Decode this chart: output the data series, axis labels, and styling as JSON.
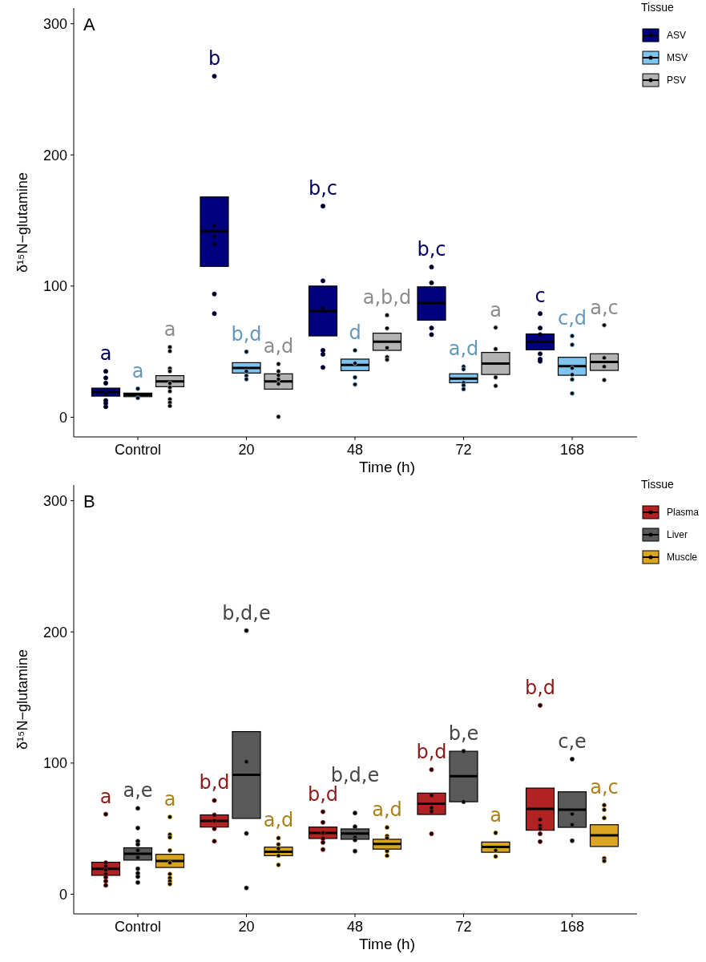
{
  "chart_data": [
    {
      "type": "box",
      "title": "A",
      "xlabel": "Time (h)",
      "ylabel": "δ¹⁵N−glutamine",
      "legend_title": "Tissue",
      "legend": "right",
      "grid": false,
      "categories": [
        "Control",
        "20",
        "48",
        "72",
        "168"
      ],
      "ylim": [
        -15,
        312
      ],
      "yticks": [
        0,
        100,
        200,
        300
      ],
      "series": [
        {
          "name": "ASV",
          "color": "#00007f",
          "boxes": [
            {
              "low": 16.1,
              "q1": 16.1,
              "median": 19.2,
              "q3": 22.2,
              "high": 22.2,
              "outliers": [
                35,
                30,
                26,
                19.4,
                18,
                12.7,
                10.6,
                8
              ]
            },
            {
              "low": 115,
              "q1": 115,
              "median": 142,
              "q3": 168,
              "high": 168,
              "outliers": [
                260,
                146,
                138,
                132,
                94,
                79
              ]
            },
            {
              "low": 62,
              "q1": 62,
              "median": 81,
              "q3": 100,
              "high": 100,
              "outliers": [
                161,
                104,
                83.5,
                51,
                48,
                38
              ]
            },
            {
              "low": 74,
              "q1": 74,
              "median": 87,
              "q3": 99.4,
              "high": 99.4,
              "outliers": [
                114.5,
                102.5,
                68,
                63
              ]
            },
            {
              "low": 51.4,
              "q1": 51.4,
              "median": 57.6,
              "q3": 63.5,
              "high": 63.5,
              "outliers": [
                79,
                68,
                63,
                48.4,
                44.3,
                42.7
              ]
            }
          ]
        },
        {
          "name": "MSV",
          "color": "#7fc3ef",
          "boxes": [
            {
              "low": 15.7,
              "q1": 15.7,
              "median": 17.1,
              "q3": 18.4,
              "high": 18.4,
              "outliers": [
                21.8,
                14.7
              ]
            },
            {
              "low": 33.7,
              "q1": 33.7,
              "median": 37.6,
              "q3": 41.6,
              "high": 41.6,
              "outliers": [
                50,
                35,
                31.7,
                29
              ]
            },
            {
              "low": 35.5,
              "q1": 35.5,
              "median": 39.8,
              "q3": 44.3,
              "high": 44.3,
              "outliers": [
                51,
                41.2,
                30.4,
                25
              ]
            },
            {
              "low": 26.3,
              "q1": 26.3,
              "median": 29.5,
              "q3": 33.1,
              "high": 33.1,
              "outliers": [
                38.6,
                36.6,
                26.3,
                24.3,
                21.4
              ]
            },
            {
              "low": 32,
              "q1": 32,
              "median": 39,
              "q3": 45.7,
              "high": 45.7,
              "outliers": [
                62,
                55.3,
                37.5,
                32.5,
                28.8,
                18.2
              ]
            }
          ]
        },
        {
          "name": "PSV",
          "color": "#b3b3b3",
          "boxes": [
            {
              "low": 23.3,
              "q1": 23.3,
              "median": 27.4,
              "q3": 31.7,
              "high": 31.7,
              "outliers": [
                53.5,
                50.4,
                37.2,
                35.1,
                25.9,
                22.8,
                19.8,
                13.7,
                11.2,
                8.6
              ]
            },
            {
              "low": 21.4,
              "q1": 21.4,
              "median": 27.4,
              "q3": 33.1,
              "high": 33.1,
              "outliers": [
                40.6,
                35,
                32,
                29,
                25.5,
                0.4
              ]
            },
            {
              "low": 51,
              "q1": 51,
              "median": 57.6,
              "q3": 64.1,
              "high": 64.1,
              "outliers": [
                77.8,
                67.8,
                52.9,
                45.9,
                43.9
              ]
            },
            {
              "low": 32.6,
              "q1": 32.6,
              "median": 41,
              "q3": 49.4,
              "high": 49.4,
              "outliers": [
                68.4,
                52,
                30.4,
                23.9
              ]
            },
            {
              "low": 35.7,
              "q1": 35.7,
              "median": 42.1,
              "q3": 48.4,
              "high": 48.4,
              "outliers": [
                70.2,
                45.3,
                38.6,
                28.4
              ]
            }
          ]
        }
      ],
      "annotations": [
        "a",
        "a",
        "a",
        "b",
        "b,d",
        "a,d",
        "b,c",
        "d",
        "a,b,d",
        "b,c",
        "a,d",
        "a",
        "c",
        "c,d",
        "a,c"
      ]
    },
    {
      "type": "box",
      "title": "B",
      "xlabel": "Time (h)",
      "ylabel": "δ¹⁵N−glutamine",
      "legend_title": "Tissue",
      "legend": "right",
      "grid": false,
      "categories": [
        "Control",
        "20",
        "48",
        "72",
        "168"
      ],
      "ylim": [
        -15,
        312
      ],
      "yticks": [
        0,
        100,
        200,
        300
      ],
      "series": [
        {
          "name": "Plasma",
          "color": "#b22222",
          "boxes": [
            {
              "low": 14.4,
              "q1": 14.4,
              "median": 19.4,
              "q3": 24.4,
              "high": 24.4,
              "outliers": [
                61,
                24,
                21.4,
                18.4,
                15.4,
                13,
                10,
                6.8
              ]
            },
            {
              "low": 51.2,
              "q1": 51.2,
              "median": 55.9,
              "q3": 60.5,
              "high": 60.5,
              "outliers": [
                71.5,
                60.5,
                56,
                50,
                40.4
              ]
            },
            {
              "low": 42.5,
              "q1": 42.5,
              "median": 46.8,
              "q3": 51.2,
              "high": 51.2,
              "outliers": [
                62.9,
                54.8,
                46.8,
                42.5,
                39.5,
                34.1
              ]
            },
            {
              "low": 60.8,
              "q1": 60.8,
              "median": 69.1,
              "q3": 77.1,
              "high": 77.1,
              "outliers": [
                95,
                75.5,
                65.9,
                63.1,
                46.1
              ]
            },
            {
              "low": 48.8,
              "q1": 48.8,
              "median": 65,
              "q3": 80.9,
              "high": 80.9,
              "outliers": [
                144,
                56.9,
                52.4,
                50,
                46.1,
                40.1
              ]
            }
          ]
        },
        {
          "name": "Liver",
          "color": "#595959",
          "boxes": [
            {
              "low": 26,
              "q1": 26,
              "median": 30.8,
              "q3": 35.4,
              "high": 35.4,
              "outliers": [
                65.5,
                50.5,
                40.4,
                38,
                33.4,
                28,
                19.4,
                16,
                13.4,
                9
              ]
            },
            {
              "low": 57.8,
              "q1": 57.8,
              "median": 91,
              "q3": 124,
              "high": 124,
              "outliers": [
                201,
                101,
                46.4,
                4.8
              ]
            },
            {
              "low": 41.9,
              "q1": 41.9,
              "median": 46.2,
              "q3": 49.8,
              "high": 49.8,
              "outliers": [
                61.9,
                51.5,
                43.4,
                41.4,
                32.9
              ]
            },
            {
              "low": 70.5,
              "q1": 70.5,
              "median": 90,
              "q3": 109,
              "high": 109,
              "outliers": [
                109,
                70.5
              ]
            },
            {
              "low": 51,
              "q1": 51,
              "median": 64.5,
              "q3": 78.1,
              "high": 78.1,
              "outliers": [
                103,
                61.1,
                53,
                40.8
              ]
            }
          ]
        },
        {
          "name": "Muscle",
          "color": "#daa520",
          "boxes": [
            {
              "low": 20.4,
              "q1": 20.4,
              "median": 25.4,
              "q3": 30.4,
              "high": 30.4,
              "outliers": [
                58.9,
                45.5,
                43.4,
                33.4,
                24,
                15.4,
                12.4,
                10,
                7.8
              ]
            },
            {
              "low": 29.4,
              "q1": 29.4,
              "median": 32.4,
              "q3": 35.9,
              "high": 35.9,
              "outliers": [
                42.8,
                38,
                34.8,
                29.4,
                22.4
              ]
            },
            {
              "low": 34.4,
              "q1": 34.4,
              "median": 38.3,
              "q3": 41.9,
              "high": 41.9,
              "outliers": [
                50.9,
                44.4,
                42.8,
                32.9,
                29.4
              ]
            },
            {
              "low": 32,
              "q1": 32,
              "median": 36,
              "q3": 39.8,
              "high": 39.8,
              "outliers": [
                46.8,
                33.4,
                28.8
              ]
            },
            {
              "low": 36.4,
              "q1": 36.4,
              "median": 44.9,
              "q3": 53,
              "high": 53,
              "outliers": [
                67.9,
                64.4,
                58.1,
                27.4,
                25.4
              ]
            }
          ]
        }
      ],
      "annotations": [
        "a",
        "a,e",
        "a",
        "b,d",
        "b,d,e",
        "a,d",
        "b,d",
        "b,d,e",
        "a,d",
        "b,d",
        "b,e",
        "a",
        "b,d",
        "c,e",
        "a,c"
      ]
    }
  ]
}
